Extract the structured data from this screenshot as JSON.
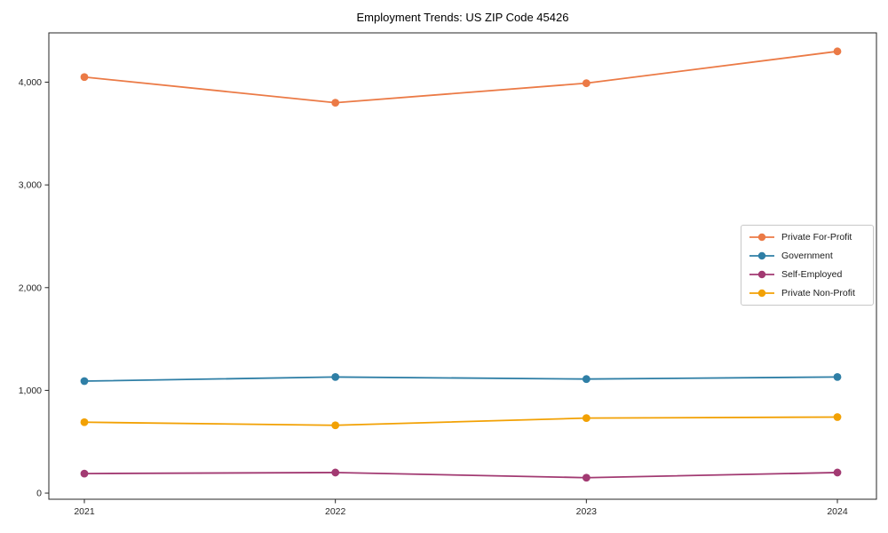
{
  "chart_data": {
    "type": "line",
    "title": "Employment Trends: US ZIP Code 45426",
    "x": [
      2021,
      2022,
      2023,
      2024
    ],
    "x_tick_labels": [
      "2021",
      "2022",
      "2023",
      "2024"
    ],
    "y_tick_values": [
      0,
      1000,
      2000,
      3000,
      4000
    ],
    "y_tick_labels": [
      "0",
      "1,000",
      "2,000",
      "3,000",
      "4,000"
    ],
    "ylim": [
      -60,
      4480
    ],
    "grid": false,
    "legend_position": "center-right",
    "marker": "circle",
    "series": [
      {
        "name": "Private For-Profit",
        "color": "#eb7a46",
        "values": [
          4050,
          3800,
          3990,
          4300
        ]
      },
      {
        "name": "Government",
        "color": "#2f7fa6",
        "values": [
          1090,
          1130,
          1110,
          1130
        ]
      },
      {
        "name": "Self-Employed",
        "color": "#a23a72",
        "values": [
          190,
          200,
          150,
          200
        ]
      },
      {
        "name": "Private Non-Profit",
        "color": "#f2a104",
        "values": [
          690,
          660,
          730,
          740
        ]
      }
    ],
    "axis_color": "#262626",
    "text_color": "#262626",
    "legend_border_color": "#c8c8c8"
  }
}
